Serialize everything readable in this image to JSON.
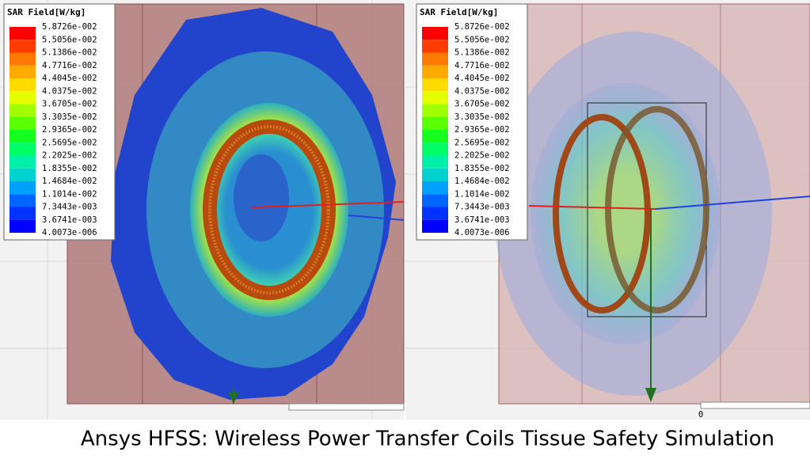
{
  "panels": [
    {
      "legend": {
        "title": "SAR Field[W/kg]",
        "labels": [
          "5.8726e-002",
          "5.5056e-002",
          "5.1386e-002",
          "4.7716e-002",
          "4.4045e-002",
          "4.0375e-002",
          "3.6705e-002",
          "3.3035e-002",
          "2.9365e-002",
          "2.5695e-002",
          "2.2025e-002",
          "1.8355e-002",
          "1.4684e-002",
          "1.1014e-002",
          "7.3443e-003",
          "3.6741e-003",
          "4.0073e-006"
        ],
        "colors": [
          "#ff0000",
          "#ff3c00",
          "#ff7800",
          "#ffaa00",
          "#ffdc00",
          "#e6ff00",
          "#a0ff00",
          "#5aff00",
          "#14ff1e",
          "#00ff64",
          "#00f0aa",
          "#00d2d2",
          "#00a0ff",
          "#0064ff",
          "#0032ff",
          "#0000ff"
        ]
      }
    },
    {
      "legend": {
        "title": "SAR Field[W/kg]",
        "labels": [
          "5.8726e-002",
          "5.5056e-002",
          "5.1386e-002",
          "4.7716e-002",
          "4.4045e-002",
          "4.0375e-002",
          "3.6705e-002",
          "3.3035e-002",
          "2.9365e-002",
          "2.5695e-002",
          "2.2025e-002",
          "1.8355e-002",
          "1.4684e-002",
          "1.1014e-002",
          "7.3443e-003",
          "3.6741e-003",
          "4.0073e-006"
        ],
        "colors": [
          "#ff0000",
          "#ff3c00",
          "#ff7800",
          "#ffaa00",
          "#ffdc00",
          "#e6ff00",
          "#a0ff00",
          "#5aff00",
          "#14ff1e",
          "#00ff64",
          "#00f0aa",
          "#00d2d2",
          "#00a0ff",
          "#0064ff",
          "#0032ff",
          "#0000ff"
        ]
      },
      "axis_label": "0"
    }
  ],
  "caption": "Ansys HFSS: Wireless Power Transfer Coils Tissue Safety Simulation"
}
